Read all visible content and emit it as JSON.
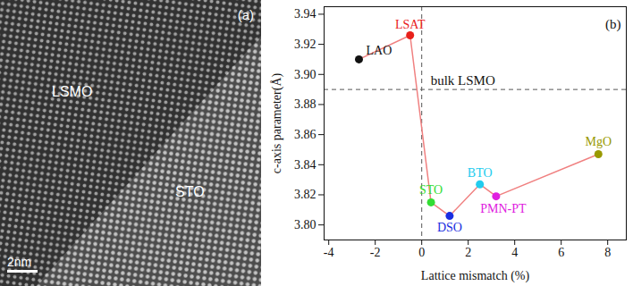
{
  "image_panel": {
    "panel_label": "(a)",
    "regions": [
      "LSMO",
      "STO"
    ],
    "scale_bar": "2nm"
  },
  "chart_data": {
    "type": "line",
    "panel_label": "(b)",
    "x_label": "Lattice mismatch (%)",
    "y_label": "c-axis parameter(Å)",
    "x": [
      -2.7,
      -0.5,
      0.4,
      1.2,
      2.5,
      3.2,
      7.6
    ],
    "series": [
      {
        "labels": [
          "LAO",
          "LSAT",
          "STO",
          "DSO",
          "BTO",
          "PMN-PT",
          "MgO"
        ],
        "values": [
          3.91,
          3.926,
          3.815,
          3.806,
          3.827,
          3.819,
          3.847
        ],
        "color": "#f08080",
        "marker": "circle",
        "line_style": "solid",
        "colors": [
          "#111111",
          "#e8201a",
          "#33dd33",
          "#1a2ee0",
          "#22ccee",
          "#e020e0",
          "#999900"
        ]
      }
    ],
    "reference_lines": {
      "x": 0,
      "y": {
        "value": 3.89,
        "label": "bulk LSMO"
      },
      "line_style": "dashed"
    },
    "xlim": [
      -4.2,
      8.8
    ],
    "xticks": [
      -4,
      -2,
      0,
      2,
      4,
      6,
      8
    ],
    "ylim": [
      3.79,
      3.945
    ],
    "yticks": [
      {
        "value": 3.8,
        "label": "3.80"
      },
      {
        "value": 3.82,
        "label": "3.82"
      },
      {
        "value": 3.84,
        "label": "3.84"
      },
      {
        "value": 3.86,
        "label": "3.86"
      },
      {
        "value": 3.88,
        "label": "3.88"
      },
      {
        "value": 3.9,
        "label": "3.90"
      },
      {
        "value": 3.92,
        "label": "3.92"
      },
      {
        "value": 3.94,
        "label": "3.94"
      }
    ],
    "grid": false
  }
}
